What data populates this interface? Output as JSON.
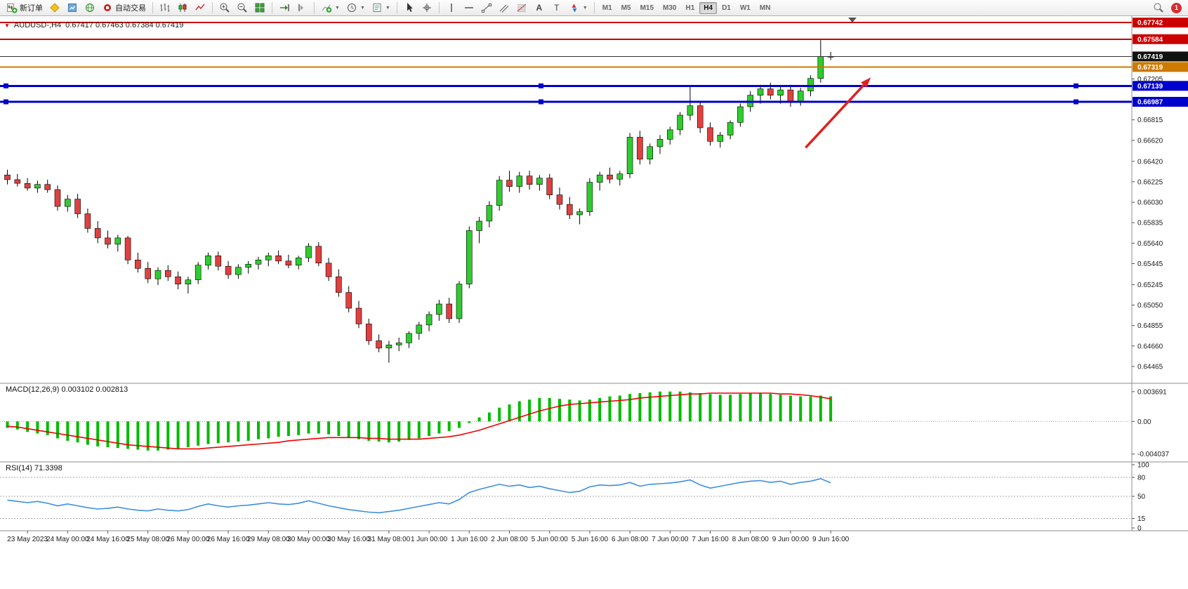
{
  "toolbar": {
    "new_order": "新订单",
    "auto_trading": "自动交易",
    "timeframes": [
      "M1",
      "M5",
      "M15",
      "M30",
      "H1",
      "H4",
      "D1",
      "W1",
      "MN"
    ],
    "active_timeframe": "H4",
    "notification_count": "1"
  },
  "window": {
    "symbol_period": "AUDUSD-,H4",
    "ohlc": "0.67417 0.67463 0.67384 0.67419"
  },
  "indicators": {
    "macd_label": "MACD(12,26,9) 0.003102 0.002813",
    "rsi_label": "RSI(14) 71.3398"
  },
  "chart_data": {
    "type": "candlestick",
    "symbol": "AUDUSD",
    "period": "H4",
    "up_color": "#2fcc2f",
    "down_color": "#e04040",
    "wick_color": "#000000",
    "price_range": [
      0.64311,
      0.6779
    ],
    "ohlc": [
      [
        0.6629,
        0.6634,
        0.662,
        0.66245
      ],
      [
        0.66245,
        0.663,
        0.6618,
        0.6621
      ],
      [
        0.6621,
        0.6626,
        0.6614,
        0.66165
      ],
      [
        0.66165,
        0.66235,
        0.6612,
        0.662
      ],
      [
        0.662,
        0.66245,
        0.6612,
        0.6615
      ],
      [
        0.6615,
        0.6619,
        0.6595,
        0.6599
      ],
      [
        0.6599,
        0.661,
        0.6594,
        0.6606
      ],
      [
        0.6606,
        0.6611,
        0.6588,
        0.6592
      ],
      [
        0.6592,
        0.6597,
        0.6574,
        0.6578
      ],
      [
        0.6578,
        0.6585,
        0.6564,
        0.6569
      ],
      [
        0.6569,
        0.6576,
        0.6559,
        0.6563
      ],
      [
        0.6563,
        0.6572,
        0.6556,
        0.6569
      ],
      [
        0.6569,
        0.6571,
        0.6544,
        0.6548
      ],
      [
        0.6548,
        0.6555,
        0.6536,
        0.654
      ],
      [
        0.654,
        0.6546,
        0.6526,
        0.653
      ],
      [
        0.653,
        0.6541,
        0.6524,
        0.6538
      ],
      [
        0.6538,
        0.6543,
        0.6528,
        0.6532
      ],
      [
        0.6532,
        0.6537,
        0.652,
        0.6525
      ],
      [
        0.6525,
        0.6532,
        0.6516,
        0.6529
      ],
      [
        0.6529,
        0.6546,
        0.6525,
        0.6543
      ],
      [
        0.6543,
        0.6555,
        0.6539,
        0.6552
      ],
      [
        0.6552,
        0.6556,
        0.6538,
        0.6542
      ],
      [
        0.6542,
        0.6547,
        0.653,
        0.6534
      ],
      [
        0.6534,
        0.6544,
        0.653,
        0.6541
      ],
      [
        0.6541,
        0.6547,
        0.6535,
        0.6544
      ],
      [
        0.6544,
        0.6551,
        0.6539,
        0.6548
      ],
      [
        0.6548,
        0.6555,
        0.6542,
        0.6552
      ],
      [
        0.6552,
        0.6557,
        0.6544,
        0.6547
      ],
      [
        0.6547,
        0.6553,
        0.654,
        0.6543
      ],
      [
        0.6543,
        0.6552,
        0.6539,
        0.655
      ],
      [
        0.655,
        0.6564,
        0.6546,
        0.6561
      ],
      [
        0.6561,
        0.6565,
        0.6542,
        0.6545
      ],
      [
        0.6545,
        0.655,
        0.6528,
        0.6532
      ],
      [
        0.6532,
        0.6539,
        0.6513,
        0.6517
      ],
      [
        0.6517,
        0.6523,
        0.6498,
        0.6502
      ],
      [
        0.6502,
        0.6509,
        0.6483,
        0.6487
      ],
      [
        0.6487,
        0.6492,
        0.6467,
        0.6471
      ],
      [
        0.6471,
        0.6477,
        0.646,
        0.6464
      ],
      [
        0.6464,
        0.6471,
        0.645,
        0.6467
      ],
      [
        0.6467,
        0.6474,
        0.6461,
        0.6469
      ],
      [
        0.6469,
        0.648,
        0.6464,
        0.6478
      ],
      [
        0.6478,
        0.6489,
        0.6472,
        0.6486
      ],
      [
        0.6486,
        0.6499,
        0.648,
        0.6496
      ],
      [
        0.6496,
        0.651,
        0.649,
        0.6506
      ],
      [
        0.6506,
        0.6512,
        0.6488,
        0.6492
      ],
      [
        0.6492,
        0.6528,
        0.6488,
        0.6525
      ],
      [
        0.6525,
        0.658,
        0.6521,
        0.6576
      ],
      [
        0.6576,
        0.6589,
        0.6564,
        0.6585
      ],
      [
        0.6585,
        0.6604,
        0.6579,
        0.66
      ],
      [
        0.66,
        0.6628,
        0.6595,
        0.6624
      ],
      [
        0.6624,
        0.6633,
        0.6613,
        0.6618
      ],
      [
        0.6618,
        0.6632,
        0.6612,
        0.6628
      ],
      [
        0.6628,
        0.6633,
        0.6615,
        0.662
      ],
      [
        0.662,
        0.6629,
        0.6614,
        0.6626
      ],
      [
        0.6626,
        0.663,
        0.6606,
        0.661
      ],
      [
        0.661,
        0.6617,
        0.6596,
        0.6601
      ],
      [
        0.6601,
        0.6608,
        0.6587,
        0.6591
      ],
      [
        0.6591,
        0.6597,
        0.6582,
        0.6594
      ],
      [
        0.6594,
        0.6626,
        0.659,
        0.6622
      ],
      [
        0.6622,
        0.6632,
        0.6614,
        0.6629
      ],
      [
        0.6629,
        0.6636,
        0.6621,
        0.6625
      ],
      [
        0.6625,
        0.6633,
        0.6619,
        0.663
      ],
      [
        0.663,
        0.6669,
        0.6626,
        0.6665
      ],
      [
        0.6665,
        0.6671,
        0.6639,
        0.6644
      ],
      [
        0.6644,
        0.6659,
        0.6639,
        0.6656
      ],
      [
        0.6656,
        0.6667,
        0.6649,
        0.6663
      ],
      [
        0.6663,
        0.6675,
        0.6658,
        0.6672
      ],
      [
        0.6672,
        0.6689,
        0.6667,
        0.6686
      ],
      [
        0.6686,
        0.6714,
        0.6681,
        0.6695
      ],
      [
        0.6695,
        0.6699,
        0.6669,
        0.6674
      ],
      [
        0.6674,
        0.6679,
        0.6657,
        0.6661
      ],
      [
        0.6661,
        0.667,
        0.6655,
        0.6667
      ],
      [
        0.6667,
        0.6681,
        0.6663,
        0.6679
      ],
      [
        0.6679,
        0.6697,
        0.6675,
        0.6694
      ],
      [
        0.6694,
        0.6709,
        0.6689,
        0.6705
      ],
      [
        0.6705,
        0.6715,
        0.6697,
        0.6711
      ],
      [
        0.6711,
        0.6717,
        0.6701,
        0.6705
      ],
      [
        0.6705,
        0.6713,
        0.6697,
        0.671
      ],
      [
        0.671,
        0.6715,
        0.6694,
        0.6699
      ],
      [
        0.6699,
        0.6712,
        0.6695,
        0.6709
      ],
      [
        0.6709,
        0.6724,
        0.6704,
        0.6721
      ],
      [
        0.6721,
        0.67575,
        0.6717,
        0.6742
      ],
      [
        0.67417,
        0.67463,
        0.67384,
        0.67419
      ]
    ],
    "price_axis_ticks": [
      0.67205,
      0.66815,
      0.6662,
      0.6642,
      0.66225,
      0.6603,
      0.65835,
      0.6564,
      0.65445,
      0.65245,
      0.6505,
      0.64855,
      0.6466,
      0.64465
    ],
    "hlines": [
      {
        "price": 0.67742,
        "label": "0.67742",
        "color": "#cc0000",
        "width": 2,
        "tag": "#cc0000",
        "handles": false
      },
      {
        "price": 0.67584,
        "label": "0.67584",
        "color": "#cc0000",
        "width": 2,
        "tag": "#cc0000",
        "handles": false
      },
      {
        "price": 0.67419,
        "label": "0.67419",
        "color": "#333333",
        "width": 1,
        "tag": "#111111",
        "handles": false
      },
      {
        "price": 0.67319,
        "label": "0.67319",
        "color": "#cc7a00",
        "width": 2,
        "tag": "#cc7a00",
        "handles": false
      },
      {
        "price": 0.67139,
        "label": "0.67139",
        "color": "#0000cc",
        "width": 3,
        "tag": "#0000cc",
        "handles": true
      },
      {
        "price": 0.66987,
        "label": "0.66987",
        "color": "#0000cc",
        "width": 3,
        "tag": "#0000cc",
        "handles": true
      }
    ],
    "arrow": {
      "i1": 79.5,
      "p1": 0.6655,
      "i2": 86,
      "p2": 0.6722,
      "color": "#e02020"
    },
    "macd": {
      "params": "12,26,9",
      "value": 0.003102,
      "signal_value": 0.002813,
      "hist_color": "#00bb00",
      "signal_color": "#ee0000",
      "range": [
        -0.0045,
        0.0042
      ],
      "axis": [
        {
          "v": 0.003691,
          "t": "0.003691"
        },
        {
          "v": 0,
          "t": "0.00"
        },
        {
          "v": -0.004037,
          "t": "-0.004037"
        }
      ],
      "histogram": [
        -0.0008,
        -0.001,
        -0.0013,
        -0.0015,
        -0.0017,
        -0.0021,
        -0.0024,
        -0.0026,
        -0.0029,
        -0.0031,
        -0.0032,
        -0.0033,
        -0.0034,
        -0.0035,
        -0.0036,
        -0.0036,
        -0.0035,
        -0.0034,
        -0.0032,
        -0.003,
        -0.0028,
        -0.0027,
        -0.0026,
        -0.0025,
        -0.0024,
        -0.0022,
        -0.0021,
        -0.0019,
        -0.0018,
        -0.0017,
        -0.0015,
        -0.0015,
        -0.0016,
        -0.0018,
        -0.002,
        -0.0022,
        -0.0024,
        -0.0025,
        -0.0026,
        -0.0025,
        -0.0023,
        -0.0021,
        -0.0018,
        -0.0015,
        -0.0012,
        -0.0008,
        -0.0002,
        0.0005,
        0.0011,
        0.0017,
        0.0021,
        0.0025,
        0.0027,
        0.0029,
        0.0029,
        0.0028,
        0.0027,
        0.0026,
        0.0027,
        0.0029,
        0.0031,
        0.0032,
        0.0034,
        0.0035,
        0.0036,
        0.0037,
        0.0037,
        0.0037,
        0.0036,
        0.0035,
        0.0034,
        0.0033,
        0.0033,
        0.0034,
        0.0035,
        0.0035,
        0.0034,
        0.0033,
        0.0032,
        0.0031,
        0.0031,
        0.0032,
        0.003102
      ],
      "signal": [
        -0.0006,
        -0.0007,
        -0.0009,
        -0.0011,
        -0.0013,
        -0.0015,
        -0.0017,
        -0.0019,
        -0.0021,
        -0.0023,
        -0.0025,
        -0.0027,
        -0.0029,
        -0.003,
        -0.0031,
        -0.0032,
        -0.0033,
        -0.0034,
        -0.0034,
        -0.0034,
        -0.0033,
        -0.0032,
        -0.0031,
        -0.003,
        -0.0029,
        -0.0028,
        -0.0027,
        -0.0026,
        -0.0024,
        -0.0023,
        -0.0022,
        -0.0021,
        -0.002,
        -0.002,
        -0.002,
        -0.002,
        -0.0021,
        -0.0021,
        -0.0022,
        -0.0022,
        -0.0022,
        -0.0022,
        -0.0021,
        -0.002,
        -0.0019,
        -0.0017,
        -0.0014,
        -0.0011,
        -0.0007,
        -0.0003,
        0.0001,
        0.0005,
        0.0009,
        0.0013,
        0.0016,
        0.0019,
        0.0021,
        0.0022,
        0.0023,
        0.0024,
        0.0025,
        0.0026,
        0.0027,
        0.0029,
        0.003,
        0.0031,
        0.0032,
        0.0033,
        0.0034,
        0.0034,
        0.0035,
        0.0035,
        0.0035,
        0.0035,
        0.0035,
        0.0035,
        0.0035,
        0.0034,
        0.0034,
        0.0033,
        0.0032,
        0.003,
        0.002813
      ]
    },
    "rsi": {
      "period": 14,
      "value": 71.3398,
      "color": "#3e8ede",
      "levels": [
        80,
        50,
        15
      ],
      "axis": [
        {
          "v": 100,
          "t": "100"
        },
        {
          "v": 80,
          "t": "80"
        },
        {
          "v": 50,
          "t": "50"
        },
        {
          "v": 15,
          "t": "15"
        },
        {
          "v": 0,
          "t": "0"
        }
      ],
      "values": [
        44,
        42,
        40,
        42,
        39,
        35,
        38,
        35,
        32,
        30,
        31,
        33,
        30,
        28,
        27,
        30,
        28,
        27,
        29,
        34,
        38,
        35,
        33,
        35,
        36,
        38,
        40,
        38,
        37,
        39,
        43,
        39,
        35,
        32,
        29,
        27,
        25,
        24,
        26,
        28,
        31,
        34,
        37,
        40,
        38,
        45,
        56,
        61,
        65,
        69,
        66,
        68,
        64,
        66,
        62,
        59,
        56,
        58,
        65,
        68,
        67,
        68,
        72,
        66,
        69,
        70,
        71,
        73,
        76,
        68,
        63,
        66,
        69,
        72,
        74,
        75,
        72,
        74,
        69,
        72,
        74,
        78,
        71.34
      ]
    },
    "time_axis": [
      {
        "t": "23 May 2023",
        "i": 2
      },
      {
        "t": "24 May 00:00",
        "i": 6
      },
      {
        "t": "24 May 16:00",
        "i": 10
      },
      {
        "t": "25 May 08:00",
        "i": 14
      },
      {
        "t": "26 May 00:00",
        "i": 18
      },
      {
        "t": "26 May 16:00",
        "i": 22
      },
      {
        "t": "29 May 08:00",
        "i": 26
      },
      {
        "t": "30 May 00:00",
        "i": 30
      },
      {
        "t": "30 May 16:00",
        "i": 34
      },
      {
        "t": "31 May 08:00",
        "i": 38
      },
      {
        "t": "1 Jun 00:00",
        "i": 42
      },
      {
        "t": "1 Jun 16:00",
        "i": 46
      },
      {
        "t": "2 Jun 08:00",
        "i": 50
      },
      {
        "t": "5 Jun 00:00",
        "i": 54
      },
      {
        "t": "5 Jun 16:00",
        "i": 58
      },
      {
        "t": "6 Jun 08:00",
        "i": 62
      },
      {
        "t": "7 Jun 00:00",
        "i": 66
      },
      {
        "t": "7 Jun 16:00",
        "i": 70
      },
      {
        "t": "8 Jun 08:00",
        "i": 74
      },
      {
        "t": "9 Jun 00:00",
        "i": 78
      },
      {
        "t": "9 Jun 16:00",
        "i": 82
      }
    ]
  }
}
